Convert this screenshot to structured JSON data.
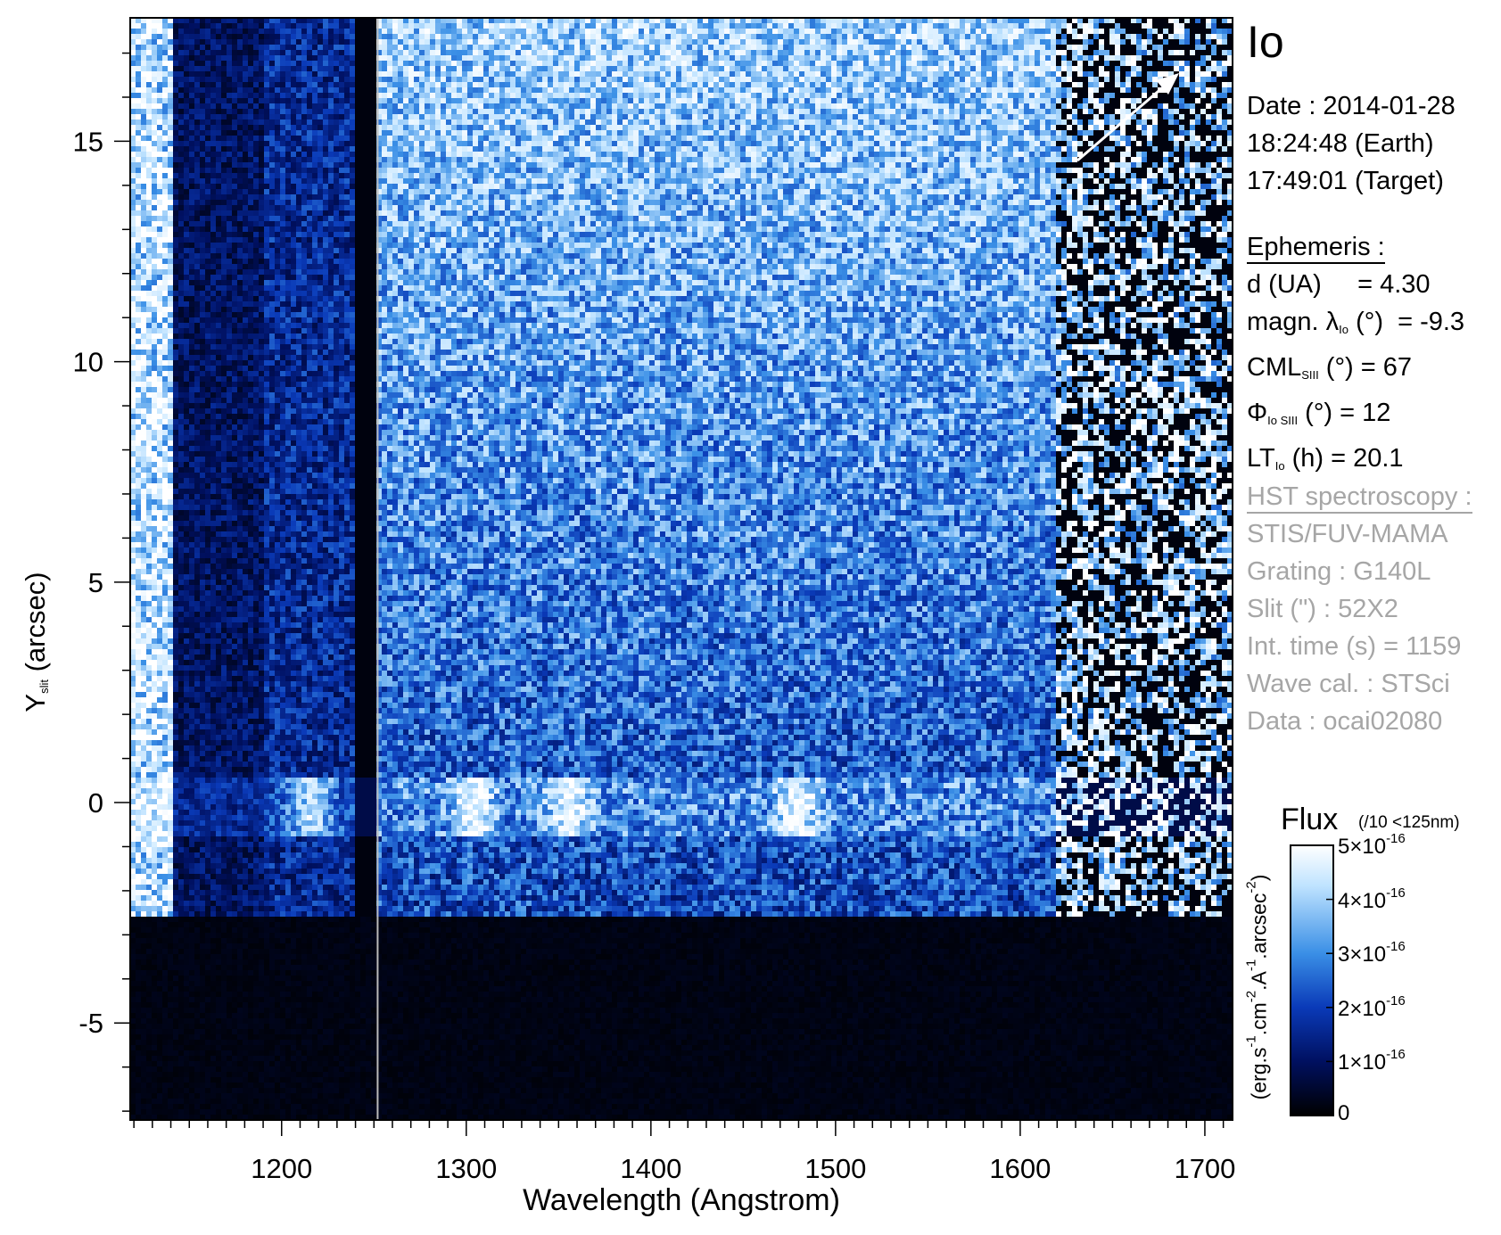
{
  "chart_data": {
    "type": "heatmap",
    "xlabel": "Wavelength (Angstrom)",
    "ylabel_main": "Y",
    "ylabel_sub": "slit",
    "ylabel_unit": " (arcsec)",
    "xlim": [
      1118,
      1715
    ],
    "ylim": [
      -7.2,
      17.8
    ],
    "x_ticks": [
      1200,
      1300,
      1400,
      1500,
      1600,
      1700
    ],
    "x_tick_labels": [
      "1200",
      "1300",
      "1400",
      "1500",
      "1600",
      "1700"
    ],
    "y_ticks": [
      -5,
      0,
      5,
      10,
      15
    ],
    "y_tick_labels": [
      "-5",
      "0",
      "5",
      "10",
      "15"
    ],
    "grid": false,
    "colorscale": [
      "#000000",
      "#001060",
      "#0a3ab8",
      "#3a8fe6",
      "#bfe3ff",
      "#ffffff"
    ],
    "emission_features_angstrom": [
      1216,
      1304,
      1356,
      1479
    ],
    "emission_band_y": [
      -0.8,
      0.6
    ],
    "detector_edge_y": -2.6,
    "direction_arrow": "toward top-right",
    "colorbar": {
      "title": "Flux",
      "note": "(/10 <125nm)",
      "label": "(erg.s-1.cm-2.A-1.arcsec-2)",
      "range": [
        0,
        5e-16
      ],
      "ticks": [
        0,
        1e-16,
        2e-16,
        3e-16,
        4e-16,
        5e-16
      ],
      "tick_labels": [
        "0",
        "1×10-16",
        "2×10-16",
        "3×10-16",
        "4×10-16",
        "5×10-16"
      ]
    }
  },
  "panel": {
    "target": "Io",
    "date_line": "Date : 2014-01-28",
    "time_earth": "18:24:48 (Earth)",
    "time_target": "17:49:01 (Target)",
    "ephemeris_header": "Ephemeris :",
    "d_line": "d (UA)     = 4.30",
    "magn_line": "magn. λIo (°)  = -9.3",
    "cml_line": "CMLSIII (°) = 67",
    "phi_line": "ΦIo SIII (°) = 12",
    "lt_line": "LTIo (h) = 20.1",
    "hst_header": "HST spectroscopy :",
    "instrument": "STIS/FUV-MAMA",
    "grating": "Grating : G140L",
    "slit": "Slit (\") : 52X2",
    "int_time": "Int. time (s) = 1159",
    "wave_cal": "Wave cal. : STSci",
    "data_id": "Data : ocai02080"
  }
}
